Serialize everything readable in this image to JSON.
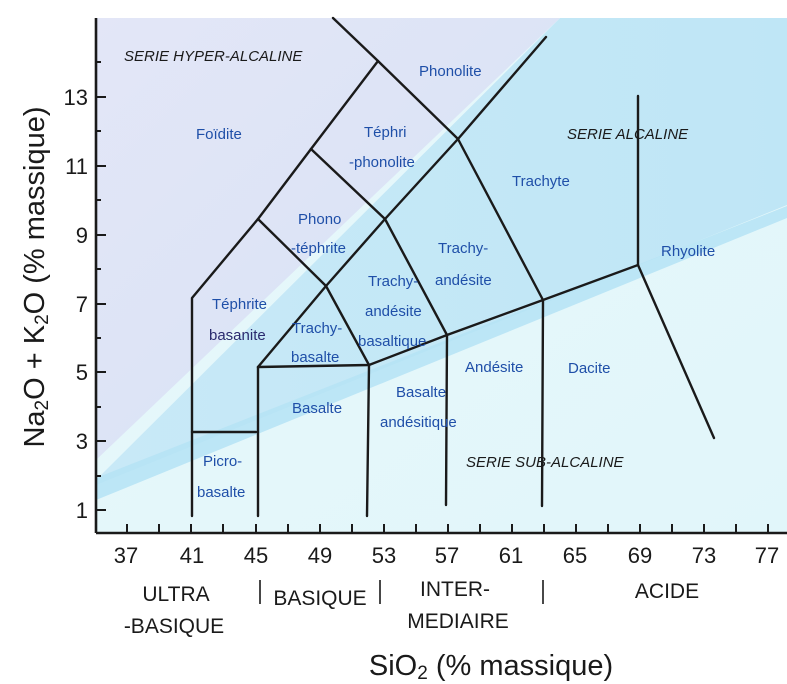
{
  "diagram": {
    "series_labels": {
      "hyper": "SERIE HYPER-ALCALINE",
      "alcaline": "SERIE ALCALINE",
      "sub": "SERIE SUB-ALCALINE"
    },
    "fields": {
      "phonolite": "Phonolite",
      "foidite": "Foïdite",
      "tephriphonolite_1": "Téphri",
      "tephriphonolite_2": "-phonolite",
      "trachyte": "Trachyte",
      "phonotephrite_1": "Phono",
      "phonotephrite_2": "-téphrite",
      "trachyandesite_1": "Trachy-",
      "trachyandesite_2": "andésite",
      "rhyolite": "Rhyolite",
      "tephrite_1": "Téphrite",
      "tephrite_2": "basanite",
      "trachybasalt_1": "Trachy-",
      "trachybasalt_2": "basalte",
      "bta_1": "Trachy-",
      "bta_2": "andésite",
      "bta_3": "basaltique",
      "andesite": "Andésite",
      "dacite": "Dacite",
      "basalt": "Basalte",
      "basaltic_andesite_1": "Basalte",
      "basaltic_andesite_2": "andésitique",
      "picrobasalt_1": "Picro-",
      "picrobasalt_2": "basalte"
    },
    "y_axis": {
      "title_parts": [
        "Na",
        "2",
        "O  +  K",
        "2",
        "O (% massique)"
      ],
      "ticks": [
        "1",
        "3",
        "5",
        "7",
        "9",
        "11",
        "13"
      ]
    },
    "x_axis": {
      "title_parts": [
        "SiO",
        "2",
        " (% massique)"
      ],
      "ticks": [
        "37",
        "41",
        "45",
        "49",
        "53",
        "57",
        "61",
        "65",
        "69",
        "73",
        "77"
      ]
    },
    "groups": {
      "ultra_1": "ULTRA",
      "ultra_2": "-BASIQUE",
      "basique": "BASIQUE",
      "inter_1": "INTER-",
      "inter_2": "MEDIAIRE",
      "acide": "ACIDE"
    },
    "colors": {
      "frame": "#1a1a1a",
      "field_label": "#1f4fa8",
      "hyper_bg": "#dfe4f6",
      "alcaline_bg": "#c9ecf8",
      "sub_bg": "#e6f8fb",
      "band": "#b9e6f6"
    }
  }
}
